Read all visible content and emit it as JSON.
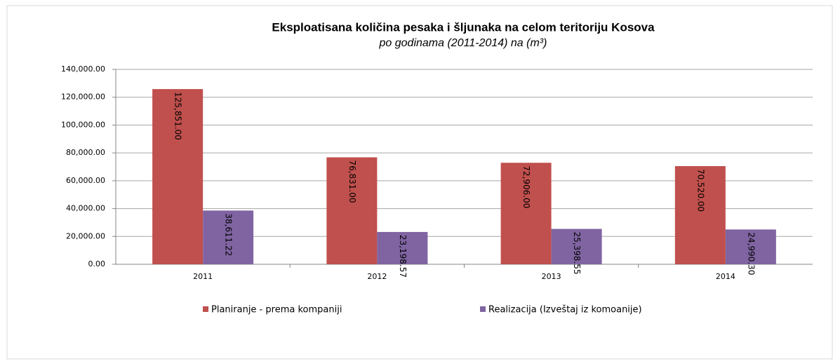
{
  "chart_data": {
    "type": "bar",
    "title": "Eksploatisana količina pesaka i šljunaka na celom teritoriju Kosova",
    "subtitle": "po godinama (2011-2014) na (m³)",
    "categories": [
      "2011",
      "2012",
      "2013",
      "2014"
    ],
    "series": [
      {
        "name": "Planiranje - prema kompaniji",
        "color": "#c0504d",
        "values": [
          125851.0,
          76831.0,
          72906.0,
          70520.0
        ],
        "value_labels": [
          "125,851.00",
          "76,831.00",
          "72,906.00",
          "70,520.00"
        ]
      },
      {
        "name": "Realizacija (Izveštaj iz komoanije)",
        "color": "#8064a2",
        "values": [
          38611.22,
          23198.57,
          25398.55,
          24990.3
        ],
        "value_labels": [
          "38,611.22",
          "23,198.57",
          "25,398.55",
          "24,990.30"
        ]
      }
    ],
    "ylim": [
      0,
      140000
    ],
    "yticks": [
      {
        "value": 0,
        "label": "0.00"
      },
      {
        "value": 20000,
        "label": "20,000.00"
      },
      {
        "value": 40000,
        "label": "40,000.00"
      },
      {
        "value": 60000,
        "label": "60,000.00"
      },
      {
        "value": 80000,
        "label": "80,000.00"
      },
      {
        "value": 100000,
        "label": "100,000.00"
      },
      {
        "value": 120000,
        "label": "120,000.00"
      },
      {
        "value": 140000,
        "label": "140,000.00"
      }
    ],
    "grid": true,
    "legend": "bottom"
  }
}
